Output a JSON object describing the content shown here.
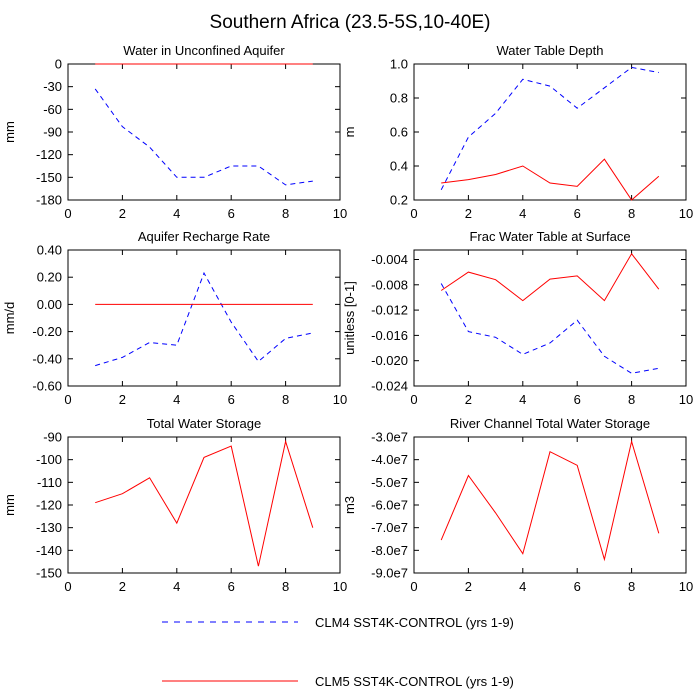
{
  "title": "Southern Africa (23.5-5S,10-40E)",
  "legend": [
    {
      "label": "CLM4 SST4K-CONTROL (yrs 1-9)",
      "color": "#0000ff",
      "dash": "dashed"
    },
    {
      "label": "CLM5 SST4K-CONTROL (yrs 1-9)",
      "color": "#ff0000",
      "dash": "solid"
    }
  ],
  "chart_data": [
    {
      "type": "line",
      "title": "Water in Unconfined Aquifer",
      "ylabel": "mm",
      "xlim": [
        0,
        10
      ],
      "ylim": [
        -180,
        0
      ],
      "xticks": [
        "0",
        "2",
        "4",
        "6",
        "8",
        "10"
      ],
      "yticks": [
        "0",
        "-30",
        "-60",
        "-90",
        "-120",
        "-150",
        "-180"
      ],
      "x": [
        1,
        2,
        3,
        4,
        5,
        6,
        7,
        8,
        9
      ],
      "series": [
        {
          "name": "CLM4 SST4K-CONTROL (yrs 1-9)",
          "color": "#0000ff",
          "dash": "dashed",
          "values": [
            -33,
            -83,
            -110,
            -150,
            -150,
            -135,
            -135,
            -160,
            -155
          ]
        },
        {
          "name": "CLM5 SST4K-CONTROL (yrs 1-9)",
          "color": "#ff0000",
          "dash": "solid",
          "values": [
            0,
            0,
            0,
            0,
            0,
            0,
            0,
            0,
            0
          ]
        }
      ]
    },
    {
      "type": "line",
      "title": "Water Table Depth",
      "ylabel": "m",
      "xlim": [
        0,
        10
      ],
      "ylim": [
        0.2,
        1.0
      ],
      "xticks": [
        "0",
        "2",
        "4",
        "6",
        "8",
        "10"
      ],
      "yticks": [
        "1.0",
        "0.8",
        "0.6",
        "0.4",
        "0.2"
      ],
      "x": [
        1,
        2,
        3,
        4,
        5,
        6,
        7,
        8,
        9
      ],
      "series": [
        {
          "name": "CLM4 SST4K-CONTROL (yrs 1-9)",
          "color": "#0000ff",
          "dash": "dashed",
          "values": [
            0.26,
            0.57,
            0.71,
            0.91,
            0.87,
            0.74,
            0.86,
            0.98,
            0.95
          ]
        },
        {
          "name": "CLM5 SST4K-CONTROL (yrs 1-9)",
          "color": "#ff0000",
          "dash": "solid",
          "values": [
            0.3,
            0.32,
            0.35,
            0.4,
            0.3,
            0.28,
            0.44,
            0.2,
            0.34
          ]
        }
      ]
    },
    {
      "type": "line",
      "title": "Aquifer Recharge Rate",
      "ylabel": "mm/d",
      "xlim": [
        0,
        10
      ],
      "ylim": [
        -0.6,
        0.4
      ],
      "xticks": [
        "0",
        "2",
        "4",
        "6",
        "8",
        "10"
      ],
      "yticks": [
        "0.40",
        "0.20",
        "0.00",
        "-0.20",
        "-0.40",
        "-0.60"
      ],
      "x": [
        1,
        2,
        3,
        4,
        5,
        6,
        7,
        8,
        9
      ],
      "series": [
        {
          "name": "CLM4 SST4K-CONTROL (yrs 1-9)",
          "color": "#0000ff",
          "dash": "dashed",
          "values": [
            -0.45,
            -0.39,
            -0.28,
            -0.3,
            0.23,
            -0.13,
            -0.42,
            -0.25,
            -0.21
          ]
        },
        {
          "name": "CLM5 SST4K-CONTROL (yrs 1-9)",
          "color": "#ff0000",
          "dash": "solid",
          "values": [
            0,
            0,
            0,
            0,
            0,
            0,
            0,
            0,
            0
          ]
        }
      ]
    },
    {
      "type": "line",
      "title": "Frac Water Table at Surface",
      "ylabel": "unitless [0-1]",
      "xlim": [
        0,
        10
      ],
      "ylim": [
        -0.024,
        -0.0025
      ],
      "xticks": [
        "0",
        "2",
        "4",
        "6",
        "8",
        "10"
      ],
      "yticks": [
        "-0.004",
        "-0.008",
        "-0.012",
        "-0.016",
        "-0.020",
        "-0.024"
      ],
      "x": [
        1,
        2,
        3,
        4,
        5,
        6,
        7,
        8,
        9
      ],
      "series": [
        {
          "name": "CLM4 SST4K-CONTROL (yrs 1-9)",
          "color": "#0000ff",
          "dash": "dashed",
          "values": [
            -0.0078,
            -0.0154,
            -0.0163,
            -0.019,
            -0.0172,
            -0.0136,
            -0.0193,
            -0.022,
            -0.0212
          ]
        },
        {
          "name": "CLM5 SST4K-CONTROL (yrs 1-9)",
          "color": "#ff0000",
          "dash": "solid",
          "values": [
            -0.0089,
            -0.006,
            -0.0072,
            -0.0105,
            -0.0071,
            -0.0066,
            -0.0105,
            -0.0031,
            -0.0087
          ]
        }
      ]
    },
    {
      "type": "line",
      "title": "Total Water Storage",
      "ylabel": "mm",
      "xlim": [
        0,
        10
      ],
      "ylim": [
        -150,
        -90
      ],
      "xticks": [
        "0",
        "2",
        "4",
        "6",
        "8",
        "10"
      ],
      "yticks": [
        "-90",
        "-100",
        "-110",
        "-120",
        "-130",
        "-140",
        "-150"
      ],
      "x": [
        1,
        2,
        3,
        4,
        5,
        6,
        7,
        8,
        9
      ],
      "series": [
        {
          "name": "CLM5 SST4K-CONTROL (yrs 1-9)",
          "color": "#ff0000",
          "dash": "solid",
          "values": [
            -119,
            -115,
            -108,
            -128,
            -99,
            -94,
            -147,
            -92,
            -130
          ]
        }
      ]
    },
    {
      "type": "line",
      "title": "River Channel Total Water Storage",
      "ylabel": "m3",
      "xlim": [
        0,
        10
      ],
      "ylim": [
        -90000000,
        -30000000
      ],
      "xticks": [
        "0",
        "2",
        "4",
        "6",
        "8",
        "10"
      ],
      "yticks": [
        "-3.0e7",
        "-4.0e7",
        "-5.0e7",
        "-6.0e7",
        "-7.0e7",
        "-8.0e7",
        "-9.0e7"
      ],
      "x": [
        1,
        2,
        3,
        4,
        5,
        6,
        7,
        8,
        9
      ],
      "series": [
        {
          "name": "CLM5 SST4K-CONTROL (yrs 1-9)",
          "color": "#ff0000",
          "dash": "solid",
          "values": [
            -75500000,
            -47000000,
            -63500000,
            -81500000,
            -36500000,
            -42500000,
            -84000000,
            -32000000,
            -72500000
          ]
        }
      ]
    }
  ]
}
